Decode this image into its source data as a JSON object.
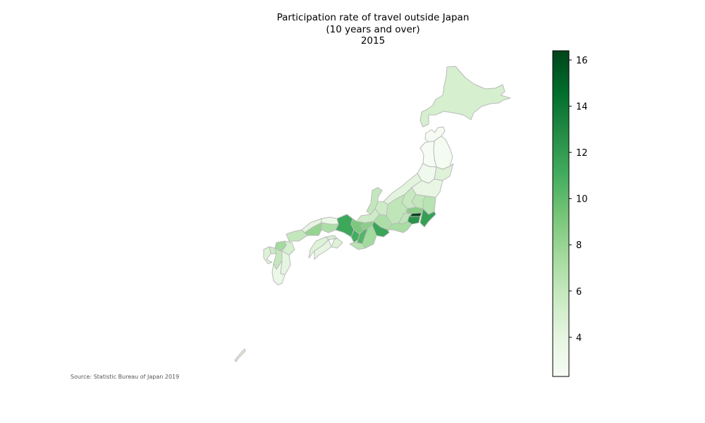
{
  "title": {
    "line1": "Participation rate of travel outside Japan",
    "line2": "(10 years and over)",
    "line3": "2015"
  },
  "source": "Source: Statistic Bureau of Japan 2019",
  "colorbar": {
    "min": 2.3,
    "max": 16.4,
    "ticks": [
      4,
      6,
      8,
      10,
      12,
      14,
      16
    ],
    "colormap": "Greens",
    "stops": [
      "#f7fcf5",
      "#e5f5e0",
      "#c7e9c0",
      "#a1d99b",
      "#74c476",
      "#41ab5d",
      "#238b45",
      "#006d2c",
      "#00441b"
    ]
  },
  "colors": {
    "border": "#bbbbbb",
    "background": "#ffffff"
  },
  "regions": [
    {
      "name": "Hokkaido",
      "value": 5.0
    },
    {
      "name": "Aomori",
      "value": 2.5
    },
    {
      "name": "Iwate",
      "value": 2.6
    },
    {
      "name": "Akita",
      "value": 2.4
    },
    {
      "name": "Miyagi",
      "value": 4.5
    },
    {
      "name": "Yamagata",
      "value": 3.0
    },
    {
      "name": "Fukushima",
      "value": 3.8
    },
    {
      "name": "Niigata",
      "value": 4.2
    },
    {
      "name": "Ibaraki",
      "value": 6.5
    },
    {
      "name": "Tochigi",
      "value": 6.0
    },
    {
      "name": "Gunma",
      "value": 5.8
    },
    {
      "name": "Nagano",
      "value": 6.2
    },
    {
      "name": "Saitama",
      "value": 8.5
    },
    {
      "name": "Chiba",
      "value": 11.8
    },
    {
      "name": "Tokyo",
      "value": 16.4
    },
    {
      "name": "Kanagawa",
      "value": 12.5
    },
    {
      "name": "Yamanashi",
      "value": 6.3
    },
    {
      "name": "Shizuoka",
      "value": 7.2
    },
    {
      "name": "Toyama",
      "value": 5.5
    },
    {
      "name": "Ishikawa",
      "value": 6.0
    },
    {
      "name": "Fukui",
      "value": 5.5
    },
    {
      "name": "Gifu",
      "value": 7.0
    },
    {
      "name": "Aichi",
      "value": 11.5
    },
    {
      "name": "Mie",
      "value": 7.5
    },
    {
      "name": "Shiga",
      "value": 8.5
    },
    {
      "name": "Kyoto",
      "value": 9.0
    },
    {
      "name": "Osaka",
      "value": 11.0
    },
    {
      "name": "Hyogo",
      "value": 11.3
    },
    {
      "name": "Nara",
      "value": 10.5
    },
    {
      "name": "Wakayama",
      "value": 6.5
    },
    {
      "name": "Tottori",
      "value": 3.5
    },
    {
      "name": "Shimane",
      "value": 4.0
    },
    {
      "name": "Okayama",
      "value": 7.0
    },
    {
      "name": "Hiroshima",
      "value": 8.0
    },
    {
      "name": "Yamaguchi",
      "value": 6.0
    },
    {
      "name": "Tokushima",
      "value": 4.5
    },
    {
      "name": "Kagawa",
      "value": 5.0
    },
    {
      "name": "Ehime",
      "value": 4.5
    },
    {
      "name": "Kochi",
      "value": 4.0
    },
    {
      "name": "Fukuoka",
      "value": 7.5
    },
    {
      "name": "Saga",
      "value": 5.5
    },
    {
      "name": "Nagasaki",
      "value": 4.5
    },
    {
      "name": "Kumamoto",
      "value": 6.0
    },
    {
      "name": "Oita",
      "value": 5.0
    },
    {
      "name": "Miyazaki",
      "value": 4.0
    },
    {
      "name": "Kagoshima",
      "value": 3.5
    },
    {
      "name": "Okinawa",
      "value": 4.5
    }
  ]
}
